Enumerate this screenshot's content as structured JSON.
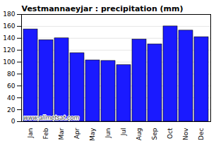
{
  "chart_data": {
    "type": "bar",
    "title": "Vestmannaeyjar : precipitation (mm)",
    "categories": [
      "Jan",
      "Feb",
      "Mar",
      "Apr",
      "May",
      "Jun",
      "Jul",
      "Aug",
      "Sep",
      "Oct",
      "Nov",
      "Dec"
    ],
    "values": [
      155,
      137,
      140,
      115,
      103,
      102,
      95,
      138,
      130,
      160,
      153,
      142
    ],
    "color": "#1a1aff",
    "ylim": [
      0,
      180
    ],
    "yticks": [
      0,
      20,
      40,
      60,
      80,
      100,
      120,
      140,
      160,
      180
    ],
    "grid": true,
    "annotation": "www.allmetsat.com"
  }
}
